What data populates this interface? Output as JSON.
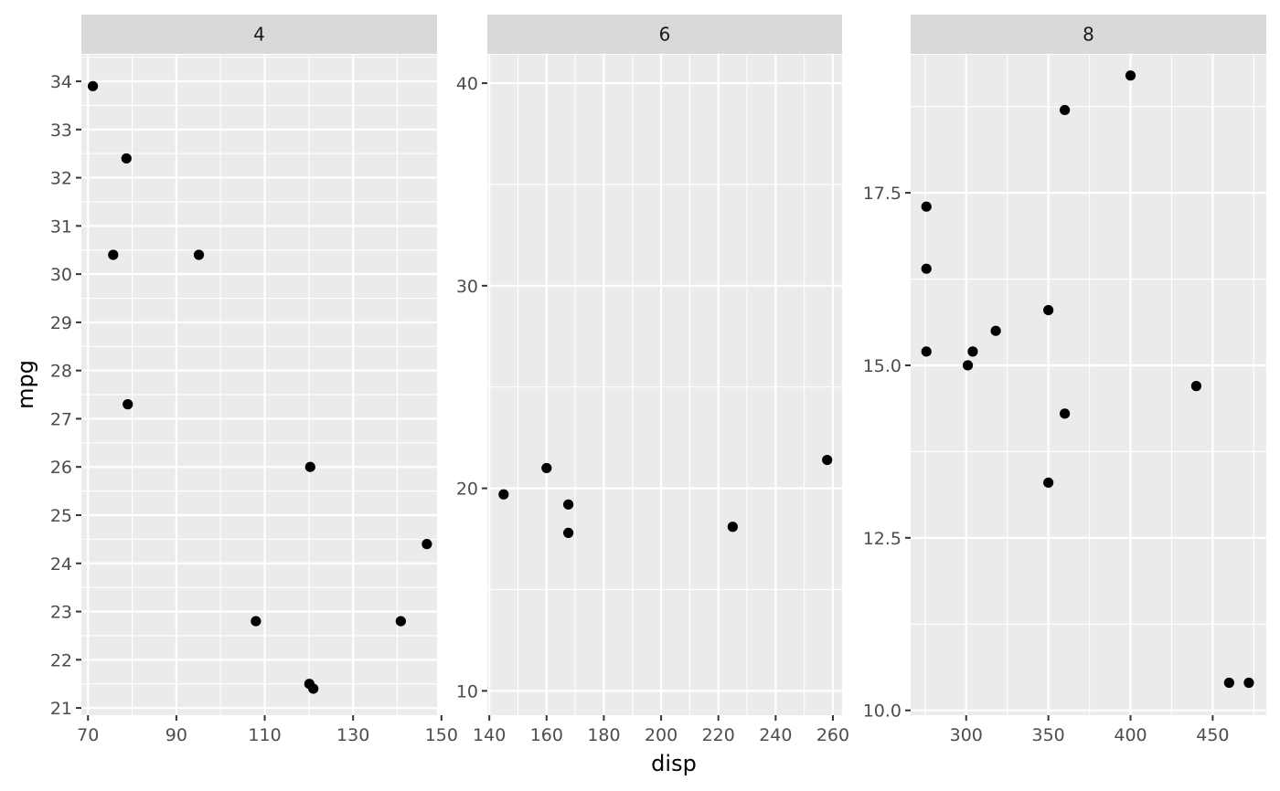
{
  "chart_data": {
    "type": "scatter",
    "facet_variable": "cyl",
    "xlabel": "disp",
    "ylabel": "mpg",
    "grid": true,
    "legend": "none",
    "panels": [
      {
        "strip": "4",
        "xlim": [
          68.5,
          149
        ],
        "ylim": [
          20.85,
          34.55
        ],
        "xticks": [
          70,
          90,
          110,
          130,
          150
        ],
        "yticks": [
          21,
          22,
          23,
          24,
          25,
          26,
          27,
          28,
          29,
          30,
          31,
          32,
          33,
          34
        ],
        "points": [
          {
            "x": 71.1,
            "y": 33.9
          },
          {
            "x": 78.7,
            "y": 32.4
          },
          {
            "x": 75.7,
            "y": 30.4
          },
          {
            "x": 95.1,
            "y": 30.4
          },
          {
            "x": 79.0,
            "y": 27.3
          },
          {
            "x": 120.3,
            "y": 26.0
          },
          {
            "x": 146.7,
            "y": 24.4
          },
          {
            "x": 108.0,
            "y": 22.8
          },
          {
            "x": 140.8,
            "y": 22.8
          },
          {
            "x": 120.1,
            "y": 21.5
          },
          {
            "x": 121.0,
            "y": 21.4
          }
        ]
      },
      {
        "strip": "6",
        "xlim": [
          139.3,
          263.2
        ],
        "ylim": [
          8.8,
          41.4
        ],
        "xticks": [
          140,
          160,
          180,
          200,
          220,
          240,
          260
        ],
        "yticks": [
          10,
          20,
          30,
          40
        ],
        "points": [
          {
            "x": 145.0,
            "y": 19.7
          },
          {
            "x": 160.0,
            "y": 21.0
          },
          {
            "x": 167.6,
            "y": 19.2
          },
          {
            "x": 167.6,
            "y": 17.8
          },
          {
            "x": 225.0,
            "y": 18.1
          },
          {
            "x": 258.0,
            "y": 21.4
          }
        ]
      },
      {
        "strip": "8",
        "xlim": [
          266.2,
          482.6
        ],
        "ylim": [
          9.93,
          19.5
        ],
        "xticks": [
          300,
          350,
          400,
          450
        ],
        "yticks": [
          10.0,
          12.5,
          15.0,
          17.5
        ],
        "ytick_labels": [
          "10.0",
          "12.5",
          "15.0",
          "17.5"
        ],
        "points": [
          {
            "x": 400.0,
            "y": 19.2
          },
          {
            "x": 360.0,
            "y": 18.7
          },
          {
            "x": 275.8,
            "y": 17.3
          },
          {
            "x": 275.8,
            "y": 16.4
          },
          {
            "x": 350.0,
            "y": 15.8
          },
          {
            "x": 318.0,
            "y": 15.5
          },
          {
            "x": 275.8,
            "y": 15.2
          },
          {
            "x": 304.0,
            "y": 15.2
          },
          {
            "x": 301.0,
            "y": 15.0
          },
          {
            "x": 440.0,
            "y": 14.7
          },
          {
            "x": 360.0,
            "y": 14.3
          },
          {
            "x": 350.0,
            "y": 13.3
          },
          {
            "x": 460.0,
            "y": 10.4
          },
          {
            "x": 472.0,
            "y": 10.4
          }
        ]
      }
    ]
  }
}
